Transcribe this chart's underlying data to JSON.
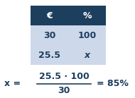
{
  "header_labels": [
    "€",
    "%"
  ],
  "row1": [
    "30",
    "100"
  ],
  "row2": [
    "25.5",
    "x"
  ],
  "header_bg": "#1c3f5e",
  "header_text_color": "#ffffff",
  "row_bg": "#cdd8ea",
  "row_text_color": "#1c3f5e",
  "formula_color": "#1c3f5e",
  "numerator": "25.5 · 100",
  "denominator": "30",
  "result": "= 85%",
  "bg_color": "#ffffff",
  "figsize": [
    1.9,
    1.39
  ],
  "dpi": 100
}
